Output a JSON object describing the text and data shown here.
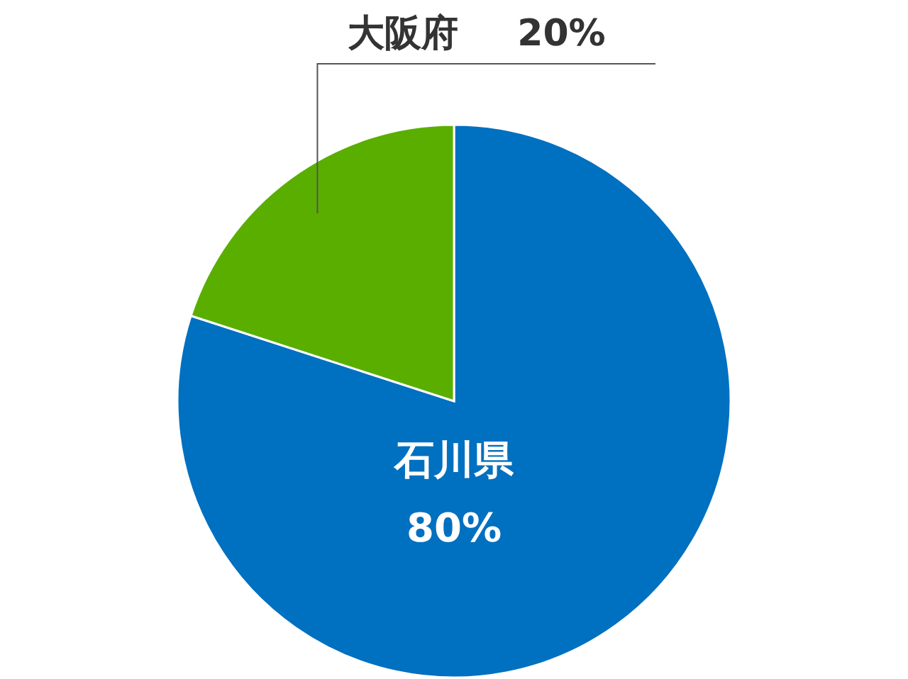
{
  "chart_data": {
    "type": "pie",
    "categories": [
      "石川県",
      "大阪府"
    ],
    "values": [
      80,
      20
    ],
    "value_labels": [
      "80%",
      "20%"
    ],
    "colors": [
      "#0070c0",
      "#5aae00"
    ]
  }
}
